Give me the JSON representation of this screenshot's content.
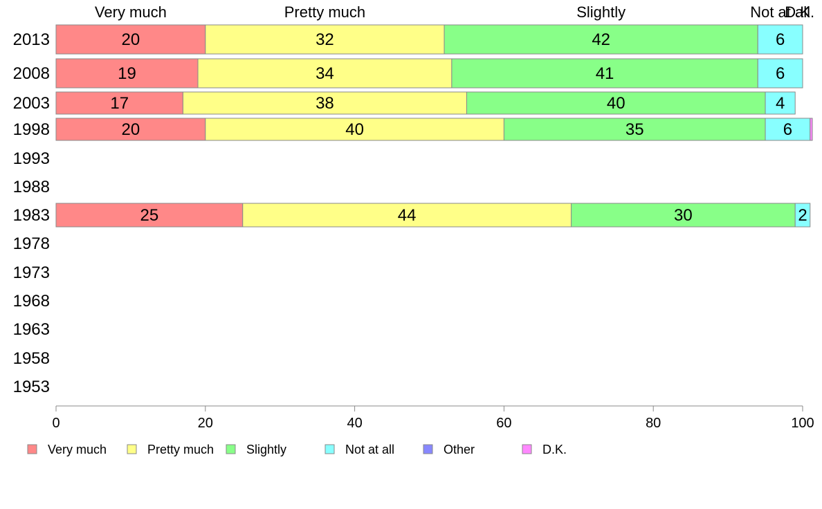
{
  "chart_data": {
    "type": "bar",
    "orientation": "horizontal",
    "stacked": true,
    "categories": [
      "2013",
      "2008",
      "2003",
      "1998",
      "1993",
      "1988",
      "1983",
      "1978",
      "1973",
      "1968",
      "1963",
      "1958",
      "1953"
    ],
    "series": [
      {
        "name": "Very much",
        "color": "#ff8888",
        "values": [
          20,
          19,
          17,
          20,
          null,
          null,
          25,
          null,
          null,
          null,
          null,
          null,
          null
        ]
      },
      {
        "name": "Pretty much",
        "color": "#ffff88",
        "values": [
          32,
          34,
          38,
          40,
          null,
          null,
          44,
          null,
          null,
          null,
          null,
          null,
          null
        ]
      },
      {
        "name": "Slightly",
        "color": "#88ff88",
        "values": [
          42,
          41,
          40,
          35,
          null,
          null,
          30,
          null,
          null,
          null,
          null,
          null,
          null
        ]
      },
      {
        "name": "Not at all",
        "color": "#88ffff",
        "values": [
          6,
          6,
          4,
          6,
          null,
          null,
          2,
          null,
          null,
          null,
          null,
          null,
          null
        ]
      },
      {
        "name": "Other",
        "color": "#8888ff",
        "values": [
          0,
          0,
          0,
          0,
          null,
          null,
          0,
          null,
          null,
          null,
          null,
          null,
          null
        ]
      },
      {
        "name": "D.K.",
        "color": "#ff88ff",
        "values": [
          0,
          0,
          0,
          0.3,
          null,
          null,
          0,
          null,
          null,
          null,
          null,
          null,
          null
        ]
      }
    ],
    "top_labels": [
      {
        "text": "Very much",
        "x": 10
      },
      {
        "text": "Pretty much",
        "x": 36
      },
      {
        "text": "Slightly",
        "x": 73
      },
      {
        "text": "Not at all",
        "x": 97
      },
      {
        "text": "D.K.",
        "x": 99.6
      }
    ],
    "xlim": [
      0,
      100
    ],
    "xticks": [
      0,
      20,
      40,
      60,
      80,
      100
    ],
    "grid": false,
    "legend_position": "bottom"
  }
}
